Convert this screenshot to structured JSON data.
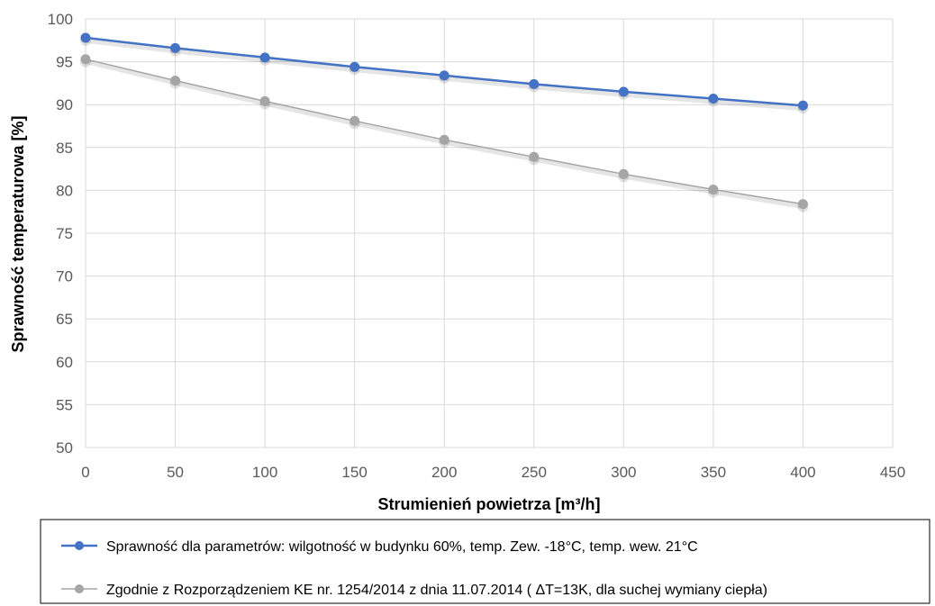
{
  "chart_data": {
    "type": "line",
    "title": "",
    "xlabel": "Strumienień powietrza [m³/h]",
    "ylabel": "Sprawność temperaturowa [%]",
    "xlim": [
      0,
      450
    ],
    "ylim": [
      50,
      100
    ],
    "x_ticks": [
      0,
      50,
      100,
      150,
      200,
      250,
      300,
      350,
      400,
      450
    ],
    "y_ticks": [
      50,
      55,
      60,
      65,
      70,
      75,
      80,
      85,
      90,
      95,
      100
    ],
    "grid": true,
    "legend_position": "bottom",
    "x": [
      0,
      50,
      100,
      150,
      200,
      250,
      300,
      350,
      400
    ],
    "series": [
      {
        "name": "Sprawność dla parametrów: wilgotność w budynku 60%, temp. Zew. -18°C, temp. wew. 21°C",
        "values": [
          97.8,
          96.6,
          95.5,
          94.4,
          93.4,
          92.4,
          91.5,
          90.7,
          89.9
        ],
        "color": "#4472C4"
      },
      {
        "name": "Zgodnie z Rozporządzeniem KE nr. 1254/2014 z dnia 11.07.2014 ( ΔT=13K, dla suchej wymiany ciepła)",
        "values": [
          95.3,
          92.8,
          90.4,
          88.1,
          85.9,
          83.9,
          81.9,
          80.1,
          78.4
        ],
        "color": "#A5A5A5"
      }
    ]
  }
}
